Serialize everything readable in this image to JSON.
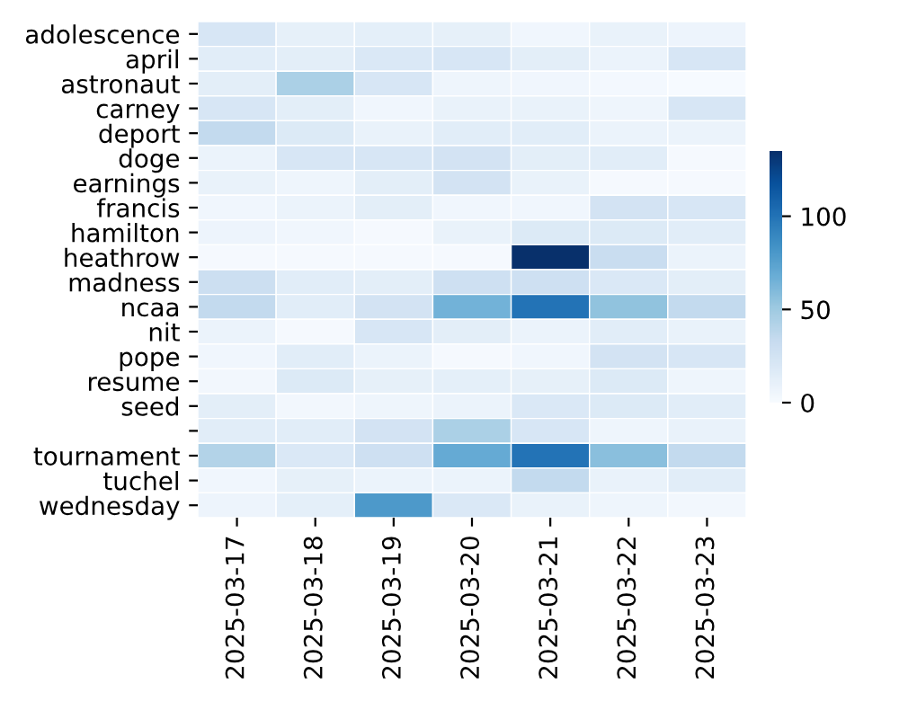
{
  "chart_data": {
    "type": "heatmap",
    "categories": [
      "2025-03-17",
      "2025-03-18",
      "2025-03-19",
      "2025-03-20",
      "2025-03-21",
      "2025-03-22",
      "2025-03-23"
    ],
    "y_categories": [
      "adolescence",
      "april",
      "astronaut",
      "carney",
      "deport",
      "doge",
      "earnings",
      "francis",
      "hamilton",
      "heathrow",
      "madness",
      "ncaa",
      "nit",
      "pope",
      "resume",
      "seed",
      null,
      "tournament",
      "tuchel",
      "wednesday"
    ],
    "cells": [
      [
        22,
        12,
        13,
        12,
        5,
        10,
        7
      ],
      [
        15,
        14,
        20,
        22,
        14,
        8,
        22
      ],
      [
        14,
        45,
        22,
        6,
        5,
        3,
        1
      ],
      [
        22,
        14,
        5,
        10,
        10,
        6,
        22
      ],
      [
        35,
        18,
        10,
        15,
        15,
        8,
        8
      ],
      [
        8,
        22,
        22,
        25,
        14,
        15,
        2
      ],
      [
        10,
        6,
        14,
        25,
        10,
        2,
        2
      ],
      [
        5,
        8,
        14,
        5,
        5,
        25,
        22
      ],
      [
        7,
        5,
        2,
        10,
        18,
        18,
        15
      ],
      [
        2,
        2,
        2,
        2,
        135,
        32,
        8
      ],
      [
        30,
        15,
        14,
        28,
        28,
        20,
        14
      ],
      [
        35,
        15,
        25,
        65,
        100,
        55,
        35
      ],
      [
        8,
        2,
        22,
        14,
        8,
        15,
        10
      ],
      [
        5,
        15,
        8,
        2,
        5,
        25,
        22
      ],
      [
        4,
        18,
        12,
        13,
        12,
        18,
        6
      ],
      [
        14,
        4,
        6,
        8,
        20,
        18,
        15
      ],
      [
        15,
        15,
        25,
        45,
        22,
        6,
        10
      ],
      [
        42,
        20,
        28,
        70,
        100,
        57,
        35
      ],
      [
        5,
        12,
        8,
        8,
        35,
        10,
        15
      ],
      [
        7,
        13,
        80,
        20,
        10,
        6,
        4
      ]
    ],
    "clim": [
      0,
      135
    ],
    "cticks": [
      0,
      50,
      100
    ]
  }
}
